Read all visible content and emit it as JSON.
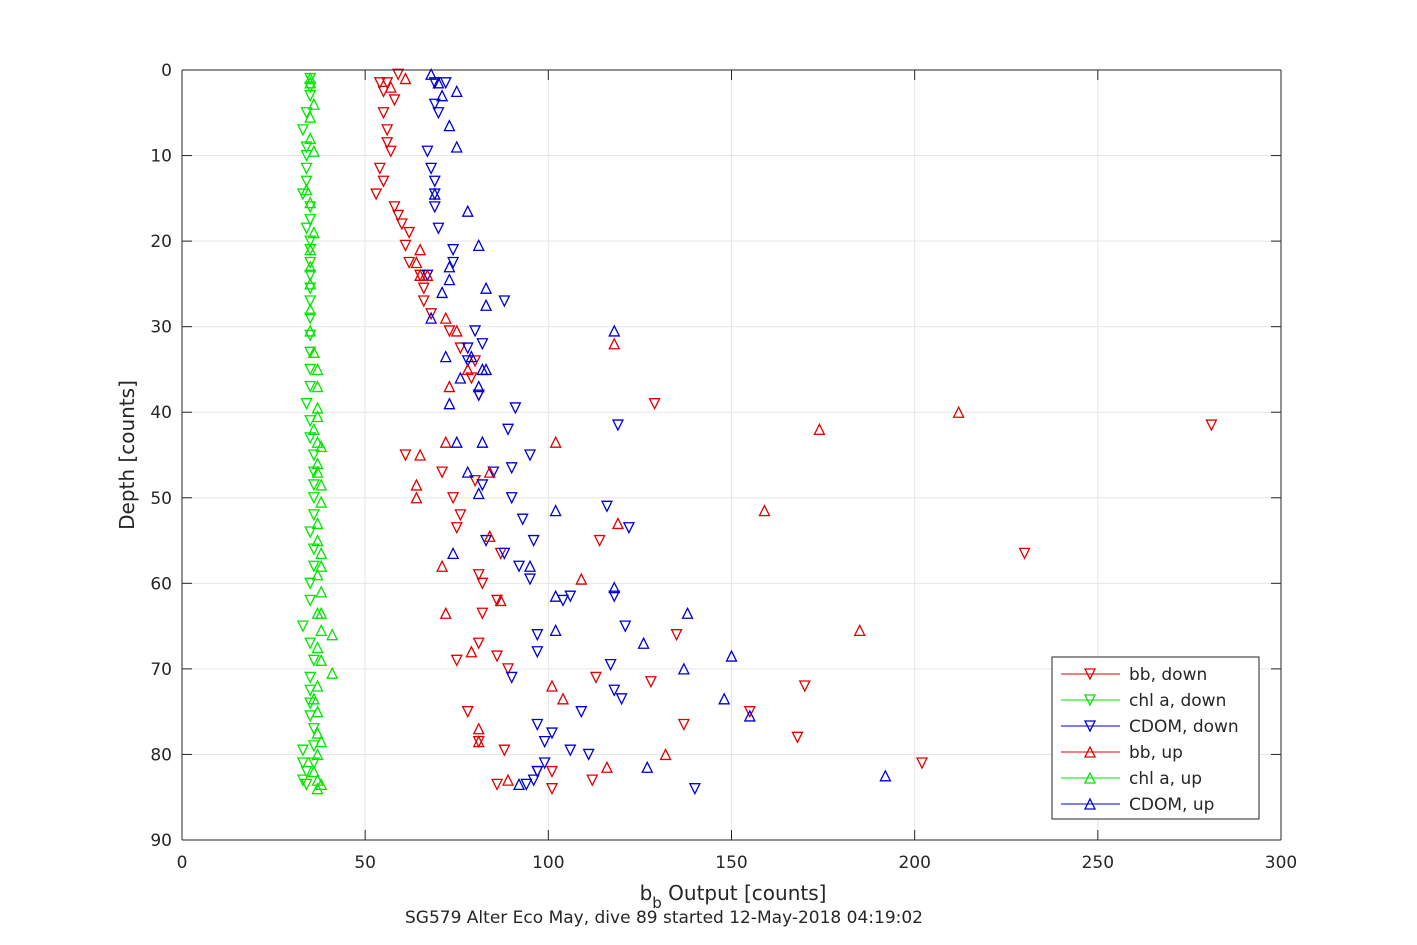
{
  "chart_data": {
    "type": "scatter",
    "title": "",
    "caption": "SG579 Alter Eco May, dive 89 started 12-May-2018 04:19:02",
    "xlabel_main": "b",
    "xlabel_sub": "b",
    "xlabel_rest": " Output [counts]",
    "ylabel": "Depth [counts]",
    "xlim": [
      0,
      300
    ],
    "ylim": [
      90,
      0
    ],
    "y_reversed": true,
    "grid": true,
    "legend_position": "bottom-right",
    "xticks": [
      "0",
      "50",
      "100",
      "150",
      "200",
      "250",
      "300"
    ],
    "yticks": [
      "0",
      "10",
      "20",
      "30",
      "40",
      "50",
      "60",
      "70",
      "80",
      "90"
    ],
    "series": [
      {
        "name": "bb, down",
        "color": "#e00000",
        "marker": "triangle-down",
        "points": [
          [
            59,
            0.5
          ],
          [
            54,
            1.5
          ],
          [
            56,
            1.5
          ],
          [
            55,
            2.5
          ],
          [
            58,
            3.5
          ],
          [
            55,
            5
          ],
          [
            56,
            7
          ],
          [
            56,
            8.5
          ],
          [
            57,
            9.5
          ],
          [
            54,
            11.5
          ],
          [
            55,
            13
          ],
          [
            53,
            14.5
          ],
          [
            58,
            16
          ],
          [
            59,
            17
          ],
          [
            60,
            18
          ],
          [
            62,
            19
          ],
          [
            61,
            20.5
          ],
          [
            62,
            22.5
          ],
          [
            65,
            24
          ],
          [
            66,
            25.5
          ],
          [
            66,
            27
          ],
          [
            68,
            28.5
          ],
          [
            73,
            30.5
          ],
          [
            76,
            32.5
          ],
          [
            80,
            34
          ],
          [
            79,
            36
          ],
          [
            81,
            38
          ],
          [
            129,
            39
          ],
          [
            281,
            41.5
          ],
          [
            61,
            45
          ],
          [
            71,
            47
          ],
          [
            80,
            48
          ],
          [
            74,
            50
          ],
          [
            76,
            52
          ],
          [
            75,
            53.5
          ],
          [
            114,
            55
          ],
          [
            87,
            56.5
          ],
          [
            230,
            56.5
          ],
          [
            81,
            59
          ],
          [
            82,
            60
          ],
          [
            86,
            62
          ],
          [
            82,
            63.5
          ],
          [
            135,
            66
          ],
          [
            81,
            67
          ],
          [
            86,
            68.5
          ],
          [
            75,
            69
          ],
          [
            89,
            70
          ],
          [
            113,
            71
          ],
          [
            128,
            71.5
          ],
          [
            170,
            72
          ],
          [
            78,
            75
          ],
          [
            155,
            75
          ],
          [
            137,
            76.5
          ],
          [
            168,
            78
          ],
          [
            81,
            78.5
          ],
          [
            88,
            79.5
          ],
          [
            202,
            81
          ],
          [
            97,
            82
          ],
          [
            101,
            82
          ],
          [
            112,
            83
          ],
          [
            86,
            83.5
          ],
          [
            101,
            84
          ]
        ]
      },
      {
        "name": "chl a, down",
        "color": "#00e600",
        "marker": "triangle-down",
        "points": [
          [
            35,
            1
          ],
          [
            35,
            2
          ],
          [
            35,
            3
          ],
          [
            34,
            5
          ],
          [
            33,
            7
          ],
          [
            34,
            9
          ],
          [
            34,
            10
          ],
          [
            34,
            11.5
          ],
          [
            34,
            13
          ],
          [
            33,
            14.5
          ],
          [
            35,
            16
          ],
          [
            35,
            17.5
          ],
          [
            34,
            18.5
          ],
          [
            35,
            20
          ],
          [
            35,
            21
          ],
          [
            35,
            22.5
          ],
          [
            35,
            24
          ],
          [
            35,
            25.5
          ],
          [
            35,
            27
          ],
          [
            35,
            29
          ],
          [
            35,
            31
          ],
          [
            35,
            33
          ],
          [
            35,
            35
          ],
          [
            35,
            37
          ],
          [
            34,
            39
          ],
          [
            35,
            41
          ],
          [
            35,
            43
          ],
          [
            36,
            45
          ],
          [
            36,
            47
          ],
          [
            36,
            48.5
          ],
          [
            36,
            50
          ],
          [
            36,
            52
          ],
          [
            35,
            54
          ],
          [
            36,
            56
          ],
          [
            36,
            58
          ],
          [
            35,
            60
          ],
          [
            35,
            62
          ],
          [
            33,
            65
          ],
          [
            35,
            67
          ],
          [
            36,
            69
          ],
          [
            35,
            71
          ],
          [
            35,
            72.5
          ],
          [
            35,
            74
          ],
          [
            35,
            75.5
          ],
          [
            36,
            77
          ],
          [
            36,
            79
          ],
          [
            33,
            79.5
          ],
          [
            36,
            81
          ],
          [
            33,
            81
          ],
          [
            34,
            82
          ],
          [
            33,
            83
          ],
          [
            34,
            83.5
          ]
        ]
      },
      {
        "name": "CDOM, down",
        "color": "#0000d6",
        "marker": "triangle-down",
        "points": [
          [
            69,
            1.5
          ],
          [
            72,
            1.5
          ],
          [
            69,
            4
          ],
          [
            70,
            5
          ],
          [
            67,
            9.5
          ],
          [
            68,
            11.5
          ],
          [
            69,
            13
          ],
          [
            69,
            14.5
          ],
          [
            69,
            16
          ],
          [
            70,
            18.5
          ],
          [
            74,
            21
          ],
          [
            74,
            22.5
          ],
          [
            67,
            24
          ],
          [
            88,
            27
          ],
          [
            80,
            30.5
          ],
          [
            78,
            32.5
          ],
          [
            82,
            32
          ],
          [
            78,
            34
          ],
          [
            81,
            38
          ],
          [
            91,
            39.5
          ],
          [
            119,
            41.5
          ],
          [
            89,
            42
          ],
          [
            95,
            45
          ],
          [
            90,
            46.5
          ],
          [
            85,
            47
          ],
          [
            82,
            48.5
          ],
          [
            90,
            50
          ],
          [
            116,
            51
          ],
          [
            93,
            52.5
          ],
          [
            122,
            53.5
          ],
          [
            96,
            55
          ],
          [
            83,
            55
          ],
          [
            88,
            56.5
          ],
          [
            92,
            58
          ],
          [
            95,
            59.5
          ],
          [
            104,
            62
          ],
          [
            106,
            61.5
          ],
          [
            118,
            61.5
          ],
          [
            121,
            65
          ],
          [
            97,
            66
          ],
          [
            97,
            68
          ],
          [
            117,
            69.5
          ],
          [
            90,
            71
          ],
          [
            118,
            72.5
          ],
          [
            120,
            73.5
          ],
          [
            109,
            75
          ],
          [
            97,
            76.5
          ],
          [
            101,
            77.5
          ],
          [
            99,
            78.5
          ],
          [
            106,
            79.5
          ],
          [
            111,
            80
          ],
          [
            99,
            81
          ],
          [
            97,
            82
          ],
          [
            96,
            83
          ],
          [
            94,
            83.5
          ],
          [
            140,
            84
          ]
        ]
      },
      {
        "name": "bb, up",
        "color": "#e00000",
        "marker": "triangle-up",
        "points": [
          [
            61,
            1
          ],
          [
            57,
            2
          ],
          [
            65,
            21
          ],
          [
            64,
            22.5
          ],
          [
            65,
            24
          ],
          [
            67,
            24
          ],
          [
            72,
            29
          ],
          [
            75,
            30.5
          ],
          [
            118,
            32
          ],
          [
            78,
            35
          ],
          [
            73,
            37
          ],
          [
            212,
            40
          ],
          [
            174,
            42
          ],
          [
            102,
            43.5
          ],
          [
            72,
            43.5
          ],
          [
            65,
            45
          ],
          [
            84,
            47
          ],
          [
            64,
            48.5
          ],
          [
            64,
            50
          ],
          [
            159,
            51.5
          ],
          [
            119,
            53
          ],
          [
            84,
            54.5
          ],
          [
            71,
            58
          ],
          [
            109,
            59.5
          ],
          [
            87,
            62
          ],
          [
            72,
            63.5
          ],
          [
            185,
            65.5
          ],
          [
            79,
            68
          ],
          [
            101,
            72
          ],
          [
            104,
            73.5
          ],
          [
            81,
            77
          ],
          [
            81,
            78.5
          ],
          [
            132,
            80
          ],
          [
            116,
            81.5
          ],
          [
            89,
            83
          ]
        ]
      },
      {
        "name": "chl a, up",
        "color": "#00e600",
        "marker": "triangle-up",
        "points": [
          [
            35,
            1
          ],
          [
            35,
            1.5
          ],
          [
            36,
            4
          ],
          [
            35,
            5.5
          ],
          [
            35,
            8
          ],
          [
            36,
            9.5
          ],
          [
            34,
            14
          ],
          [
            35,
            15.5
          ],
          [
            36,
            19
          ],
          [
            35,
            21
          ],
          [
            35,
            23
          ],
          [
            35,
            25
          ],
          [
            35,
            28
          ],
          [
            35,
            30.5
          ],
          [
            36,
            33
          ],
          [
            37,
            35
          ],
          [
            37,
            37
          ],
          [
            37,
            39.5
          ],
          [
            37,
            40.5
          ],
          [
            36,
            42
          ],
          [
            37,
            43.5
          ],
          [
            38,
            44
          ],
          [
            37,
            46
          ],
          [
            37,
            47
          ],
          [
            38,
            48.5
          ],
          [
            38,
            50.5
          ],
          [
            37,
            53
          ],
          [
            37,
            55
          ],
          [
            38,
            56.5
          ],
          [
            38,
            58
          ],
          [
            37,
            59
          ],
          [
            38,
            61
          ],
          [
            37,
            63.5
          ],
          [
            38,
            63.5
          ],
          [
            38,
            65.5
          ],
          [
            41,
            66
          ],
          [
            37,
            67.5
          ],
          [
            38,
            69
          ],
          [
            41,
            70.5
          ],
          [
            37,
            72
          ],
          [
            36,
            73.5
          ],
          [
            37,
            75
          ],
          [
            37,
            77.5
          ],
          [
            38,
            78.5
          ],
          [
            37,
            80
          ],
          [
            36,
            82
          ],
          [
            37,
            83
          ],
          [
            38,
            83.5
          ],
          [
            37,
            84
          ]
        ]
      },
      {
        "name": "CDOM, up",
        "color": "#0000d6",
        "marker": "triangle-up",
        "points": [
          [
            68,
            0.5
          ],
          [
            70,
            1.5
          ],
          [
            75,
            2.5
          ],
          [
            71,
            3
          ],
          [
            73,
            6.5
          ],
          [
            75,
            9
          ],
          [
            69,
            14.5
          ],
          [
            78,
            16.5
          ],
          [
            81,
            20.5
          ],
          [
            73,
            23
          ],
          [
            73,
            24.5
          ],
          [
            83,
            25.5
          ],
          [
            71,
            26
          ],
          [
            83,
            27.5
          ],
          [
            68,
            29
          ],
          [
            118,
            30.5
          ],
          [
            79,
            33.5
          ],
          [
            72,
            33.5
          ],
          [
            76,
            36
          ],
          [
            81,
            37
          ],
          [
            82,
            35
          ],
          [
            83,
            35
          ],
          [
            73,
            39
          ],
          [
            75,
            43.5
          ],
          [
            82,
            43.5
          ],
          [
            78,
            47
          ],
          [
            81,
            49.5
          ],
          [
            102,
            51.5
          ],
          [
            74,
            56.5
          ],
          [
            95,
            58
          ],
          [
            102,
            61.5
          ],
          [
            118,
            60.5
          ],
          [
            138,
            63.5
          ],
          [
            102,
            65.5
          ],
          [
            126,
            67
          ],
          [
            150,
            68.5
          ],
          [
            137,
            70
          ],
          [
            148,
            73.5
          ],
          [
            155,
            75.5
          ],
          [
            127,
            81.5
          ],
          [
            192,
            82.5
          ],
          [
            92,
            83.5
          ]
        ]
      }
    ]
  }
}
